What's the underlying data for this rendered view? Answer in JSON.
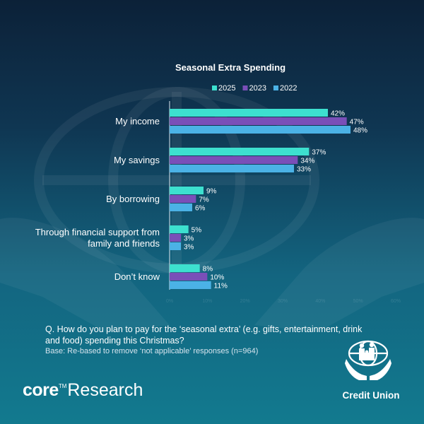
{
  "chart_data": {
    "type": "bar",
    "orientation": "horizontal",
    "title": "Seasonal Extra Spending",
    "categories": [
      [
        "My income"
      ],
      [
        "My savings"
      ],
      [
        "By borrowing"
      ],
      [
        "Through financial support from",
        "family and friends"
      ],
      [
        "Don’t know"
      ]
    ],
    "series": [
      {
        "name": "2025",
        "color": "#3de0cf",
        "values": [
          42,
          37,
          9,
          5,
          8
        ]
      },
      {
        "name": "2023",
        "color": "#7a4fb8",
        "values": [
          47,
          34,
          7,
          3,
          10
        ]
      },
      {
        "name": "2022",
        "color": "#4bb2e6",
        "values": [
          48,
          33,
          6,
          3,
          11
        ]
      }
    ],
    "value_suffix": "%",
    "xlim": [
      0,
      60
    ],
    "x_ticks": [
      "0%",
      "10%",
      "20%",
      "30%",
      "40%",
      "50%",
      "60%"
    ],
    "legend_position": "top-right",
    "grid": false
  },
  "footer": {
    "question": "Q. How do you plan to pay for the ‘seasonal extra’ (e.g. gifts, entertainment, drink and food) spending this Christmas?",
    "base": "Base: Re-based to remove ‘not applicable’ responses (n=964)"
  },
  "brand": {
    "core": "core",
    "tm": "TM",
    "research": "Research"
  },
  "logo": {
    "name": "Credit Union",
    "icon": "credit-union-hands-globe-icon"
  }
}
